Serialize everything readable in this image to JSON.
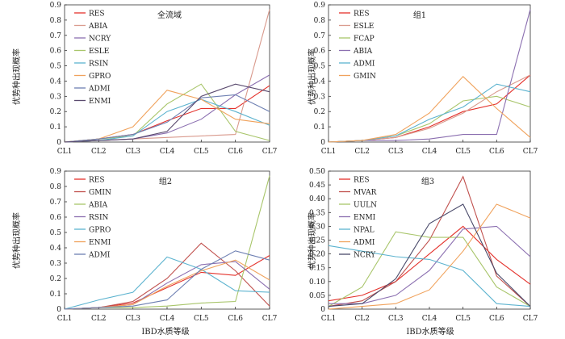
{
  "figure": {
    "xlabel_bottom": "IBD水质等级",
    "ylabel": "优势种出现概率"
  },
  "chart_data": [
    {
      "type": "line",
      "title": "全流域",
      "categories": [
        "CL1",
        "CL2",
        "CL3",
        "CL4",
        "CL5",
        "CL6",
        "CL7"
      ],
      "ylim": [
        0,
        0.9
      ],
      "yticks": [
        "0",
        "0.1",
        "0.2",
        "0.3",
        "0.4",
        "0.5",
        "0.6",
        "0.7",
        "0.8",
        "0.9"
      ],
      "grid": false,
      "legend": "top-left",
      "series": [
        {
          "name": "RES",
          "color": "#e4312b",
          "values": [
            0,
            0.02,
            0.05,
            0.14,
            0.22,
            0.22,
            0.37
          ]
        },
        {
          "name": "ABIA",
          "color": "#d99a8d",
          "values": [
            0,
            0.01,
            0.02,
            0.03,
            0.04,
            0.05,
            0.87
          ]
        },
        {
          "name": "NCRY",
          "color": "#8b6fb0",
          "values": [
            0,
            0.01,
            0.02,
            0.06,
            0.15,
            0.31,
            0.44
          ]
        },
        {
          "name": "ESLE",
          "color": "#a8c56a",
          "values": [
            0,
            0.02,
            0.04,
            0.25,
            0.38,
            0.07,
            0.01
          ]
        },
        {
          "name": "RSIN",
          "color": "#5cb3cf",
          "values": [
            0,
            0.01,
            0.04,
            0.2,
            0.28,
            0.2,
            0.11
          ]
        },
        {
          "name": "GPRO",
          "color": "#f0a25c",
          "values": [
            0,
            0.02,
            0.1,
            0.34,
            0.28,
            0.15,
            0.12
          ]
        },
        {
          "name": "ADMI",
          "color": "#6d7fb2",
          "values": [
            0,
            0.02,
            0.05,
            0.13,
            0.29,
            0.31,
            0.2
          ]
        },
        {
          "name": "ENMI",
          "color": "#5a4a6e",
          "values": [
            0,
            0.01,
            0.02,
            0.07,
            0.3,
            0.38,
            0.33
          ]
        }
      ]
    },
    {
      "type": "line",
      "title": "组1",
      "categories": [
        "CL1",
        "CL2",
        "CL3",
        "CL4",
        "CL5",
        "CL6",
        "CL7"
      ],
      "ylim": [
        0,
        0.9
      ],
      "yticks": [
        "0",
        "0.1",
        "0.2",
        "0.3",
        "0.4",
        "0.5",
        "0.6",
        "0.7",
        "0.8",
        "0.9"
      ],
      "grid": false,
      "legend": "top-left",
      "series": [
        {
          "name": "RES",
          "color": "#e4312b",
          "values": [
            0,
            0.01,
            0.03,
            0.1,
            0.2,
            0.25,
            0.44
          ]
        },
        {
          "name": "ESLE",
          "color": "#d99a8d",
          "values": [
            0,
            0.01,
            0.03,
            0.09,
            0.19,
            0.33,
            0.44
          ]
        },
        {
          "name": "FCAP",
          "color": "#a8c56a",
          "values": [
            0,
            0.01,
            0.04,
            0.12,
            0.27,
            0.3,
            0.23
          ]
        },
        {
          "name": "ABIA",
          "color": "#8b6fb0",
          "values": [
            0,
            0.01,
            0.01,
            0.02,
            0.05,
            0.05,
            0.87
          ]
        },
        {
          "name": "ADMI",
          "color": "#5cb3cf",
          "values": [
            0,
            0.01,
            0.04,
            0.15,
            0.23,
            0.38,
            0.33
          ]
        },
        {
          "name": "GMIN",
          "color": "#f0a25c",
          "values": [
            0,
            0.01,
            0.05,
            0.19,
            0.43,
            0.22,
            0.03
          ]
        }
      ]
    },
    {
      "type": "line",
      "title": "组2",
      "categories": [
        "CL1",
        "CL2",
        "CL3",
        "CL4",
        "CL5",
        "CL6",
        "CL7"
      ],
      "ylim": [
        0,
        0.9
      ],
      "yticks": [
        "0",
        "0.1",
        "0.2",
        "0.3",
        "0.4",
        "0.5",
        "0.6",
        "0.7",
        "0.8",
        "0.9"
      ],
      "grid": false,
      "legend": "top-left",
      "series": [
        {
          "name": "RES",
          "color": "#e4312b",
          "values": [
            0,
            0.01,
            0.04,
            0.14,
            0.24,
            0.22,
            0.35
          ]
        },
        {
          "name": "GMIN",
          "color": "#c0504d",
          "values": [
            0,
            0.01,
            0.05,
            0.2,
            0.43,
            0.25,
            0.02
          ]
        },
        {
          "name": "ABIA",
          "color": "#a8c56a",
          "values": [
            0,
            0.01,
            0.01,
            0.02,
            0.04,
            0.05,
            0.87
          ]
        },
        {
          "name": "RSIN",
          "color": "#8b6fb0",
          "values": [
            0,
            0.01,
            0.03,
            0.17,
            0.29,
            0.31,
            0.13
          ]
        },
        {
          "name": "GPRO",
          "color": "#5cb3cf",
          "values": [
            0,
            0.06,
            0.11,
            0.34,
            0.26,
            0.12,
            0.11
          ]
        },
        {
          "name": "ENMI",
          "color": "#f0a25c",
          "values": [
            0,
            0.01,
            0.03,
            0.15,
            0.25,
            0.32,
            0.19
          ]
        },
        {
          "name": "ADMI",
          "color": "#6d7fb2",
          "values": [
            0,
            0.01,
            0.02,
            0.06,
            0.26,
            0.38,
            0.32
          ]
        }
      ]
    },
    {
      "type": "line",
      "title": "组3",
      "categories": [
        "CL1",
        "CL2",
        "CL3",
        "CL4",
        "CL5",
        "CL6",
        "CL7"
      ],
      "ylim": [
        0,
        0.5
      ],
      "yticks": [
        "0",
        "0.05",
        "0.10",
        "0.15",
        "0.20",
        "0.25",
        "0.30",
        "0.35",
        "0.40",
        "0.45",
        "0.50"
      ],
      "grid": false,
      "legend": "top-left",
      "series": [
        {
          "name": "RES",
          "color": "#e4312b",
          "values": [
            0.03,
            0.05,
            0.1,
            0.2,
            0.3,
            0.18,
            0.09
          ]
        },
        {
          "name": "MVAR",
          "color": "#c0504d",
          "values": [
            0.01,
            0.03,
            0.1,
            0.25,
            0.48,
            0.12,
            0.01
          ]
        },
        {
          "name": "UULN",
          "color": "#a8c56a",
          "values": [
            0.01,
            0.08,
            0.28,
            0.26,
            0.26,
            0.08,
            0.01
          ]
        },
        {
          "name": "ENMI",
          "color": "#8b6fb0",
          "values": [
            0.02,
            0.02,
            0.05,
            0.14,
            0.29,
            0.3,
            0.19
          ]
        },
        {
          "name": "NPAL",
          "color": "#5cb3cf",
          "values": [
            0.23,
            0.21,
            0.19,
            0.18,
            0.14,
            0.02,
            0.01
          ]
        },
        {
          "name": "ADMI",
          "color": "#f0a25c",
          "values": [
            0,
            0.01,
            0.02,
            0.07,
            0.21,
            0.38,
            0.33
          ]
        },
        {
          "name": "NCRY",
          "color": "#4a4a6a",
          "values": [
            0.01,
            0.02,
            0.11,
            0.31,
            0.38,
            0.13,
            0.01
          ]
        }
      ]
    }
  ]
}
